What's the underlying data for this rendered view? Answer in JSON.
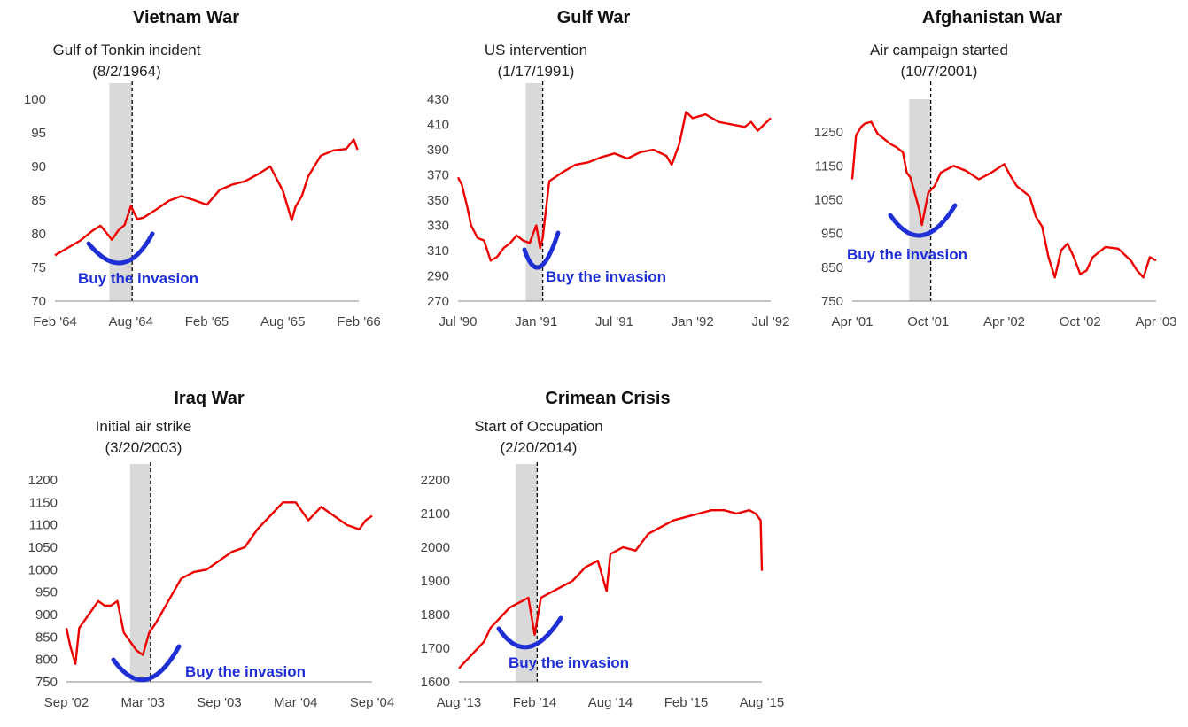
{
  "colors": {
    "line": "#ee0000",
    "highlight": "#d9d9d9",
    "marker": "#000000",
    "buy": "#1f2fd6",
    "text": "#111111",
    "tick": "#444444"
  },
  "chart_data": [
    {
      "type": "line",
      "title": "Vietnam War",
      "annotation": {
        "line1": "Gulf of Tonkin incident",
        "line2": "(8/2/1964)",
        "event_x": 6.1
      },
      "highlight_range": [
        4.3,
        6.1
      ],
      "buy_label": "Buy the invasion",
      "ylim": [
        70,
        100
      ],
      "yticks": [
        100,
        95,
        90,
        85,
        80,
        75,
        70
      ],
      "xlim": [
        0,
        24
      ],
      "xticks": [
        {
          "label": "Feb '64",
          "x": 0
        },
        {
          "label": "Aug '64",
          "x": 6
        },
        {
          "label": "Feb '65",
          "x": 12
        },
        {
          "label": "Aug '65",
          "x": 18
        },
        {
          "label": "Feb '66",
          "x": 24
        }
      ],
      "series": [
        {
          "x": [
            0,
            1,
            2,
            3,
            3.6,
            4,
            4.5,
            5,
            5.5,
            6,
            6.5,
            7,
            8,
            9,
            10,
            11,
            12,
            13,
            14,
            15,
            16,
            17,
            18,
            18.7,
            19,
            19.5,
            20,
            21,
            22,
            23,
            23.3,
            23.6,
            23.9
          ],
          "y": [
            76.8,
            77.9,
            79.0,
            80.5,
            81.2,
            80.3,
            79.1,
            80.5,
            81.3,
            84.1,
            82.2,
            82.4,
            83.6,
            84.9,
            85.6,
            85.0,
            84.3,
            86.5,
            87.3,
            87.8,
            88.8,
            90.0,
            86.4,
            82.0,
            84.0,
            85.6,
            88.5,
            91.6,
            92.4,
            92.6,
            93.3,
            94.0,
            92.5
          ]
        }
      ]
    },
    {
      "type": "line",
      "title": "Gulf War",
      "annotation": {
        "line1": "US intervention",
        "line2": "(1/17/1991)",
        "event_x": 6.5
      },
      "highlight_range": [
        5.2,
        6.5
      ],
      "buy_label": "Buy the invasion",
      "ylim": [
        270,
        430
      ],
      "yticks": [
        430,
        410,
        390,
        370,
        350,
        330,
        310,
        290,
        270
      ],
      "xlim": [
        0,
        24
      ],
      "xticks": [
        {
          "label": "Jul '90",
          "x": 0
        },
        {
          "label": "Jan '91",
          "x": 6
        },
        {
          "label": "Jul '91",
          "x": 12
        },
        {
          "label": "Jan '92",
          "x": 18
        },
        {
          "label": "Jul '92",
          "x": 24
        }
      ],
      "series": [
        {
          "x": [
            0,
            0.3,
            0.7,
            1,
            1.5,
            2,
            2.5,
            3,
            3.5,
            4,
            4.5,
            5,
            5.5,
            6,
            6.3,
            6.5,
            7,
            8,
            9,
            10,
            11,
            12,
            13,
            14,
            15,
            16,
            16.4,
            17,
            17.5,
            18,
            19,
            20,
            21,
            22,
            22.5,
            23,
            23.5,
            24
          ],
          "y": [
            368,
            362,
            345,
            330,
            320,
            318,
            302,
            305,
            312,
            316,
            322,
            318,
            316,
            330,
            312,
            320,
            365,
            372,
            378,
            380,
            384,
            387,
            383,
            388,
            390,
            385,
            378,
            395,
            420,
            415,
            418,
            412,
            410,
            408,
            412,
            405,
            410,
            415
          ]
        }
      ]
    },
    {
      "type": "line",
      "title": "Afghanistan War",
      "annotation": {
        "line1": "Air campaign started",
        "line2": "(10/7/2001)",
        "event_x": 6.2
      },
      "highlight_range": [
        4.5,
        6.2
      ],
      "buy_label": "Buy the invasion",
      "ylim": [
        750,
        1300
      ],
      "yticks": [
        1250,
        1150,
        1050,
        950,
        850,
        750
      ],
      "xlim": [
        0,
        24
      ],
      "xticks": [
        {
          "label": "Apr '01",
          "x": 0
        },
        {
          "label": "Oct '01",
          "x": 6
        },
        {
          "label": "Apr '02",
          "x": 12
        },
        {
          "label": "Oct '02",
          "x": 18
        },
        {
          "label": "Apr '03",
          "x": 24
        }
      ],
      "series": [
        {
          "x": [
            0,
            0.3,
            0.7,
            1,
            1.5,
            2,
            2.5,
            3,
            3.5,
            4,
            4.3,
            4.6,
            5,
            5.3,
            5.5,
            6,
            6.5,
            7,
            8,
            9,
            10,
            11,
            12,
            12.5,
            13,
            14,
            14.5,
            15,
            15.5,
            16,
            16.5,
            17,
            17.5,
            18,
            18.5,
            19,
            20,
            21,
            22,
            22.5,
            23,
            23.5,
            24
          ],
          "y": [
            1110,
            1240,
            1265,
            1275,
            1280,
            1245,
            1230,
            1215,
            1205,
            1190,
            1130,
            1115,
            1060,
            1020,
            975,
            1070,
            1090,
            1130,
            1150,
            1135,
            1110,
            1130,
            1155,
            1120,
            1090,
            1060,
            1000,
            970,
            880,
            820,
            900,
            920,
            880,
            830,
            840,
            880,
            910,
            905,
            870,
            840,
            820,
            880,
            870
          ]
        }
      ]
    },
    {
      "type": "line",
      "title": "Iraq War",
      "annotation": {
        "line1": "Initial air strike",
        "line2": "(3/20/2003)",
        "event_x": 6.6
      },
      "highlight_range": [
        5.0,
        6.6
      ],
      "buy_label": "Buy the invasion",
      "ylim": [
        750,
        1200
      ],
      "yticks": [
        1200,
        1150,
        1100,
        1050,
        1000,
        950,
        900,
        850,
        800,
        750
      ],
      "xlim": [
        0,
        24
      ],
      "xticks": [
        {
          "label": "Sep '02",
          "x": 0
        },
        {
          "label": "Mar '03",
          "x": 6
        },
        {
          "label": "Sep '03",
          "x": 12
        },
        {
          "label": "Mar '04",
          "x": 18
        },
        {
          "label": "Sep '04",
          "x": 24
        }
      ],
      "series": [
        {
          "x": [
            0,
            0.3,
            0.7,
            1,
            1.5,
            2,
            2.5,
            3,
            3.5,
            4,
            4.5,
            5,
            5.5,
            6,
            6.5,
            7,
            8,
            9,
            10,
            11,
            12,
            13,
            14,
            15,
            16,
            17,
            18,
            19,
            20,
            21,
            22,
            23,
            23.5,
            24
          ],
          "y": [
            870,
            830,
            790,
            870,
            890,
            910,
            930,
            920,
            920,
            930,
            860,
            840,
            820,
            810,
            860,
            880,
            930,
            980,
            995,
            1000,
            1020,
            1040,
            1050,
            1090,
            1120,
            1150,
            1150,
            1110,
            1140,
            1120,
            1100,
            1090,
            1110,
            1120
          ]
        }
      ]
    },
    {
      "type": "line",
      "title": "Crimean Crisis",
      "annotation": {
        "line1": "Start of Occupation",
        "line2": "(2/20/2014)",
        "event_x": 6.2
      },
      "highlight_range": [
        4.5,
        6.2
      ],
      "buy_label": "Buy the invasion",
      "ylim": [
        1600,
        2200
      ],
      "yticks": [
        2200,
        2100,
        2000,
        1900,
        1800,
        1700,
        1600
      ],
      "xlim": [
        0,
        24
      ],
      "xticks": [
        {
          "label": "Aug '13",
          "x": 0
        },
        {
          "label": "Feb '14",
          "x": 6
        },
        {
          "label": "Aug '14",
          "x": 12
        },
        {
          "label": "Feb '15",
          "x": 18
        },
        {
          "label": "Aug '15",
          "x": 24
        }
      ],
      "series": [
        {
          "x": [
            0,
            0.5,
            1,
            1.5,
            2,
            2.5,
            3,
            3.5,
            4,
            4.5,
            5,
            5.5,
            6,
            6.5,
            7,
            8,
            9,
            10,
            11,
            11.7,
            12,
            12.5,
            13,
            14,
            15,
            16,
            17,
            18,
            19,
            20,
            21,
            22,
            23,
            23.5,
            23.9,
            24
          ],
          "y": [
            1640,
            1660,
            1680,
            1700,
            1720,
            1760,
            1780,
            1800,
            1820,
            1830,
            1840,
            1850,
            1740,
            1850,
            1860,
            1880,
            1900,
            1940,
            1960,
            1870,
            1980,
            1990,
            2000,
            1990,
            2040,
            2060,
            2080,
            2090,
            2100,
            2110,
            2110,
            2100,
            2110,
            2100,
            2080,
            1930
          ]
        }
      ]
    }
  ]
}
